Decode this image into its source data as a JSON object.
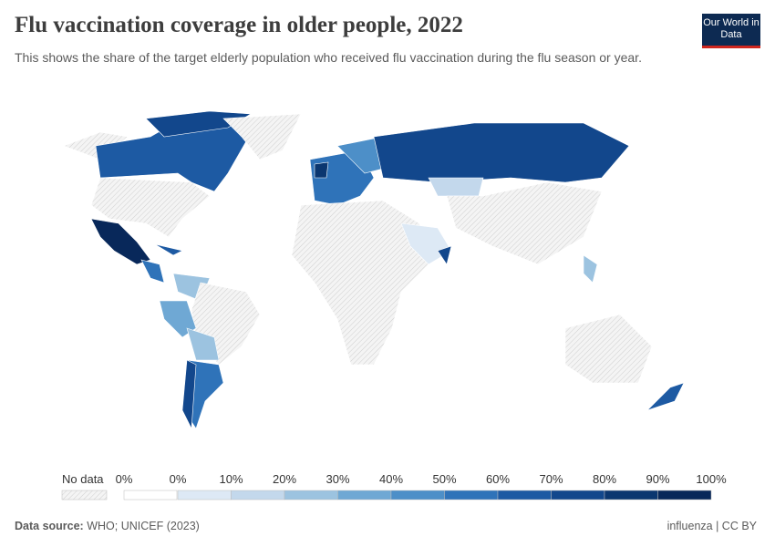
{
  "header": {
    "title": "Flu vaccination coverage in older people, 2022",
    "subtitle": "This shows the share of the target elderly population who received flu vaccination during the flu season or year.",
    "logo": "Our World in Data"
  },
  "legend": {
    "no_data": "No data",
    "zero_label": "0%",
    "zero_color": "#ffffff",
    "labels": [
      "0%",
      "10%",
      "20%",
      "30%",
      "40%",
      "50%",
      "60%",
      "70%",
      "80%",
      "90%",
      "100%"
    ],
    "colors": [
      "#dde9f5",
      "#c3d8ec",
      "#9cc3e0",
      "#6fa8d4",
      "#4d8fc8",
      "#2f73b9",
      "#1d5aa3",
      "#12478c",
      "#0b3770",
      "#08285a"
    ]
  },
  "footer": {
    "source_label": "Data source:",
    "source": "WHO; UNICEF (2023)",
    "tag": "influenza | CC BY"
  }
}
